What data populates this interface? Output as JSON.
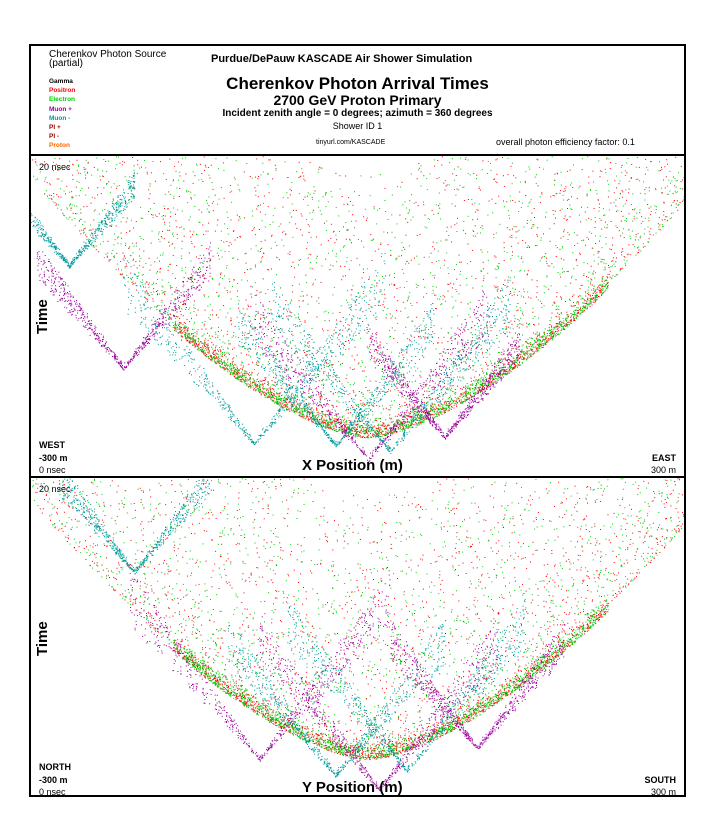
{
  "header": {
    "source_title": "Cherenkov Photon Source",
    "source_subtitle": "(partial)",
    "simulation": "Purdue/DePauw KASCADE Air Shower Simulation",
    "title": "Cherenkov Photon Arrival Times",
    "subtitle": "2700 GeV Proton Primary",
    "angles": "Incident zenith angle =  0 degrees;  azimuth =  360 degrees",
    "shower_id": "Shower ID 1",
    "url": "tinyurl.com/KASCADE",
    "efficiency": "overall photon efficiency factor: 0.1"
  },
  "legend": [
    {
      "label": "Gamma",
      "color": "#000000"
    },
    {
      "label": "Positron",
      "color": "#ff0000"
    },
    {
      "label": "Electron",
      "color": "#00cc00"
    },
    {
      "label": "Muon +",
      "color": "#990099"
    },
    {
      "label": "Muon -",
      "color": "#009999"
    },
    {
      "label": "",
      "color": "#ffff00"
    },
    {
      "label": "PI +",
      "color": "#990000"
    },
    {
      "label": "PI -",
      "color": "#990000"
    },
    {
      "label": "Proton",
      "color": "#ff6600"
    }
  ],
  "chart_data": [
    {
      "type": "scatter",
      "xlabel": "X Position (m)",
      "ylabel": "Time",
      "time_top_label": "20 nsec",
      "time_bottom_label": "0 nsec",
      "left_direction": "WEST",
      "right_direction": "EAST",
      "left_position": "-300 m",
      "right_position": "300 m",
      "xlim": [
        -300,
        300
      ],
      "ylim": [
        0,
        20
      ],
      "series": [
        {
          "color": "#ff0000",
          "values": []
        },
        {
          "color": "#00cc00",
          "values": []
        },
        {
          "color": "#990099",
          "values": []
        },
        {
          "color": "#009999",
          "values": []
        }
      ]
    },
    {
      "type": "scatter",
      "xlabel": "Y Position (m)",
      "ylabel": "Time",
      "time_top_label": "20 nsec",
      "time_bottom_label": "0 nsec",
      "left_direction": "NORTH",
      "right_direction": "SOUTH",
      "left_position": "-300 m",
      "right_position": "300 m",
      "xlim": [
        -300,
        300
      ],
      "ylim": [
        0,
        20
      ],
      "series": [
        {
          "color": "#ff0000",
          "values": []
        },
        {
          "color": "#00cc00",
          "values": []
        },
        {
          "color": "#990099",
          "values": []
        },
        {
          "color": "#009999",
          "values": []
        }
      ]
    }
  ]
}
